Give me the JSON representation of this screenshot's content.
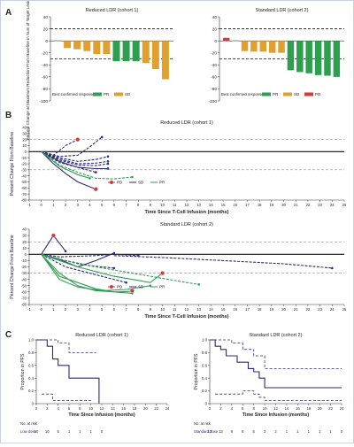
{
  "panels": [
    {
      "label": "A"
    },
    {
      "label": "B"
    },
    {
      "label": "C"
    }
  ],
  "colors": {
    "pr": "#2e9e4f",
    "sd": "#e0a030",
    "pd": "#d33a3a",
    "bc": "#999999",
    "line": "#2b2b7a",
    "green_line": "#2e9e4f",
    "axis": "#333333"
  },
  "chart_data": [
    {
      "type": "bar",
      "panel": "A",
      "title": "Reduced LDR (cohort 1)",
      "ylabel": "Percent Change at Maximum Reduction From Baseline in Sum of Target Lesion Diameters",
      "ylim": [
        -100,
        40
      ],
      "yticks": [
        40,
        20,
        0,
        -20,
        -40,
        -60,
        -80,
        -100
      ],
      "reference_lines": [
        20,
        -30
      ],
      "values": [
        1,
        -12,
        -14,
        -17,
        -22,
        -22,
        -34,
        -34,
        -34,
        -37,
        -47,
        -64
      ],
      "response": [
        "BC",
        "SD",
        "SD",
        "SD",
        "SD",
        "SD",
        "PR",
        "PR",
        "PR",
        "SD",
        "SD",
        "SD"
      ],
      "legend": {
        "title": "Best confirmed response",
        "entries": [
          "PR",
          "SD"
        ]
      }
    },
    {
      "type": "bar",
      "panel": "A",
      "title": "Standard LDR (cohort 2)",
      "ylabel": "Percent Change at Maximum Reduction From Baseline in Sum of Target Lesion Diameters",
      "ylim": [
        -100,
        40
      ],
      "yticks": [
        40,
        20,
        0,
        -20,
        -40,
        -60,
        -80,
        -100
      ],
      "reference_lines": [
        20,
        -30
      ],
      "values": [
        5,
        1,
        -17,
        -18,
        -18,
        -20,
        -20,
        -49,
        -52,
        -54,
        -57,
        -58,
        -60
      ],
      "response": [
        "PD",
        "BC",
        "SD",
        "SD",
        "SD",
        "SD",
        "SD",
        "PR",
        "PR",
        "PR",
        "PR",
        "PR",
        "PR"
      ],
      "legend": {
        "title": "Best confirmed response",
        "entries": [
          "PR",
          "SD",
          "PD"
        ]
      }
    },
    {
      "type": "line",
      "panel": "B",
      "title": "Reduced LDR (cohort 1)",
      "xlabel": "Time Since T-Cell Infusion (months)",
      "ylabel": "Percent Change From Baseline",
      "xlim": [
        -1,
        25
      ],
      "ylim": [
        -80,
        40
      ],
      "xticks": [
        -1,
        0,
        1,
        2,
        3,
        4,
        5,
        6,
        7,
        8,
        9,
        10,
        11,
        12,
        13,
        14,
        15,
        16,
        17,
        18,
        19,
        20,
        21,
        22,
        23,
        24,
        25
      ],
      "yticks": [
        40,
        30,
        20,
        10,
        0,
        -10,
        -20,
        -30,
        -40,
        -50,
        -60,
        -70,
        -80
      ],
      "reference_lines": [
        20,
        -30
      ],
      "legend": [
        "PD",
        "SD",
        "PR"
      ],
      "series": [
        {
          "response": "SD",
          "dashed": true,
          "x": [
            0,
            1,
            2,
            3
          ],
          "y": [
            0,
            -6,
            10,
            20
          ]
        },
        {
          "response": "PD",
          "dashed": true,
          "x": [
            0,
            1.5,
            3,
            4,
            5
          ],
          "y": [
            0,
            -8,
            -6,
            8,
            24
          ]
        },
        {
          "response": "SD",
          "dashed": true,
          "x": [
            0,
            1.5,
            3,
            4.5,
            5.5
          ],
          "y": [
            0,
            -10,
            -16,
            -13,
            -8
          ]
        },
        {
          "response": "SD",
          "dashed": true,
          "x": [
            0,
            1.5,
            3,
            4.5,
            5.5
          ],
          "y": [
            0,
            -12,
            -20,
            -19,
            -16
          ]
        },
        {
          "response": "SD",
          "dashed": true,
          "x": [
            0,
            1.5,
            3,
            4.5,
            5.5
          ],
          "y": [
            0,
            -14,
            -22,
            -23,
            -20
          ]
        },
        {
          "response": "SD",
          "dashed": false,
          "x": [
            0,
            1.5,
            3,
            4.5,
            5.5
          ],
          "y": [
            0,
            -16,
            -26,
            -28,
            -28
          ]
        },
        {
          "response": "SD",
          "dashed": true,
          "x": [
            0,
            1.5,
            3,
            4.5
          ],
          "y": [
            0,
            -18,
            -26,
            -34
          ]
        },
        {
          "response": "SD",
          "dashed": false,
          "x": [
            0,
            1,
            2,
            3,
            4.5
          ],
          "y": [
            0,
            -20,
            -36,
            -50,
            -62
          ]
        },
        {
          "response": "PR",
          "dashed": true,
          "x": [
            0,
            1.5,
            3,
            4.5,
            6,
            7.5
          ],
          "y": [
            0,
            -22,
            -34,
            -44,
            -45,
            -42
          ]
        },
        {
          "response": "PR",
          "dashed": false,
          "x": [
            0,
            1.5,
            3,
            4
          ],
          "y": [
            0,
            -24,
            -38,
            -44
          ]
        }
      ],
      "markers": [
        {
          "response": "PD",
          "x": 3,
          "y": 20
        },
        {
          "response": "PD",
          "x": 4.5,
          "y": -62
        }
      ]
    },
    {
      "type": "line",
      "panel": "B",
      "title": "Standard LDR (cohort 2)",
      "xlabel": "Time Since T-Cell Infusion (months)",
      "ylabel": "Percent Change From Baseline",
      "xlim": [
        -1,
        25
      ],
      "ylim": [
        -80,
        40
      ],
      "xticks": [
        -1,
        0,
        1,
        2,
        3,
        4,
        5,
        6,
        7,
        8,
        9,
        10,
        11,
        12,
        13,
        14,
        15,
        16,
        17,
        18,
        19,
        20,
        21,
        22,
        23,
        24,
        25
      ],
      "yticks": [
        40,
        30,
        20,
        10,
        0,
        -10,
        -20,
        -30,
        -40,
        -50,
        -60,
        -70,
        -80
      ],
      "reference_lines": [
        20,
        -30
      ],
      "legend": [
        "PD",
        "SD",
        "PR"
      ],
      "series": [
        {
          "response": "PD",
          "dashed": false,
          "x": [
            0,
            1,
            2
          ],
          "y": [
            0,
            30,
            5
          ]
        },
        {
          "response": "SD",
          "dashed": false,
          "x": [
            0,
            1.5,
            3,
            4.5,
            6
          ],
          "y": [
            0,
            -8,
            -20,
            -10,
            2
          ]
        },
        {
          "response": "SD",
          "dashed": true,
          "x": [
            0,
            1.5,
            3,
            4.5,
            6,
            8
          ],
          "y": [
            0,
            -4,
            -3,
            -2,
            0,
            -2
          ]
        },
        {
          "response": "SD",
          "dashed": true,
          "x": [
            6,
            10,
            15,
            20,
            24
          ],
          "y": [
            -2,
            -5,
            -10,
            -15,
            -22
          ]
        },
        {
          "response": "SD",
          "dashed": true,
          "x": [
            0,
            2,
            4,
            6
          ],
          "y": [
            0,
            -10,
            -18,
            -22
          ]
        },
        {
          "response": "SD",
          "dashed": true,
          "x": [
            0,
            2,
            4,
            6,
            7
          ],
          "y": [
            0,
            -20,
            -30,
            -40,
            -45
          ]
        },
        {
          "response": "PR",
          "dashed": false,
          "x": [
            0,
            1.5,
            3,
            4.5,
            6,
            7.5
          ],
          "y": [
            0,
            -35,
            -45,
            -55,
            -60,
            -62
          ]
        },
        {
          "response": "PR",
          "dashed": false,
          "x": [
            0,
            1.5,
            3,
            4.5,
            6,
            7.5
          ],
          "y": [
            0,
            -30,
            -50,
            -58,
            -60,
            -59
          ]
        },
        {
          "response": "PR",
          "dashed": false,
          "x": [
            0,
            1.5,
            3,
            5,
            7,
            9
          ],
          "y": [
            0,
            -40,
            -52,
            -58,
            -56,
            -50
          ]
        },
        {
          "response": "PR",
          "dashed": false,
          "x": [
            0,
            3,
            6,
            9,
            10
          ],
          "y": [
            0,
            -20,
            -35,
            -45,
            -30
          ]
        },
        {
          "response": "PR",
          "dashed": true,
          "x": [
            0,
            3,
            6,
            9,
            12,
            13
          ],
          "y": [
            0,
            -15,
            -25,
            -35,
            -45,
            -48
          ]
        }
      ],
      "markers": [
        {
          "response": "PD",
          "x": 1,
          "y": 30
        },
        {
          "response": "PD",
          "x": 10,
          "y": -30
        },
        {
          "response": "PD",
          "x": 7.5,
          "y": -58
        }
      ]
    },
    {
      "type": "line",
      "panel": "C",
      "title": "Reduced LDR (cohort 1)",
      "xlabel": "Time Since Infusion (months)",
      "ylabel": "Proportion in PFS",
      "xlim": [
        0,
        24
      ],
      "ylim": [
        0,
        1.0
      ],
      "xticks": [
        0,
        2,
        4,
        6,
        8,
        10,
        12,
        14,
        16,
        18,
        20,
        22,
        24
      ],
      "yticks": [
        "0",
        "0.2",
        "0.4",
        "0.6",
        "0.8",
        "1.0"
      ],
      "km": {
        "x": [
          0,
          2,
          3,
          4,
          6,
          11,
          11.5
        ],
        "y": [
          1.0,
          0.9,
          0.7,
          0.6,
          0.4,
          0.4,
          0.0
        ]
      },
      "ci_upper": {
        "x": [
          0,
          3,
          4,
          6,
          11
        ],
        "y": [
          1.0,
          1.0,
          0.95,
          0.8,
          0.8
        ]
      },
      "ci_lower": {
        "x": [
          1,
          2,
          3,
          4,
          6,
          10
        ],
        "y": [
          0.15,
          0.15,
          0.05,
          0.05,
          0.05,
          0.05
        ]
      },
      "risk_table": {
        "label": "No. at risk",
        "row_label": "Low dose",
        "counts": [
          "10",
          "10",
          "5",
          "1",
          "1",
          "1",
          "0"
        ]
      }
    },
    {
      "type": "line",
      "panel": "C",
      "title": "Standard LDR (cohort 2)",
      "xlabel": "Time Since Infusion (months)",
      "ylabel": "Proportion in PFS",
      "xlim": [
        0,
        24
      ],
      "ylim": [
        0,
        1.0
      ],
      "xticks": [
        0,
        2,
        4,
        6,
        8,
        10,
        12,
        14,
        16,
        18,
        20,
        22,
        24
      ],
      "yticks": [
        "0",
        "0.2",
        "0.4",
        "0.6",
        "0.8",
        "1.0"
      ],
      "km": {
        "x": [
          0,
          1,
          2,
          3,
          5,
          7,
          8,
          9,
          10,
          24
        ],
        "y": [
          1.0,
          0.9,
          0.85,
          0.75,
          0.65,
          0.55,
          0.5,
          0.4,
          0.25,
          0.25
        ]
      },
      "ci_upper": {
        "x": [
          0,
          2,
          4,
          6,
          8,
          10,
          24
        ],
        "y": [
          1.0,
          1.0,
          0.95,
          0.85,
          0.75,
          0.55,
          0.55
        ]
      },
      "ci_lower": {
        "x": [
          1,
          4,
          6,
          8,
          9,
          10,
          24
        ],
        "y": [
          0.15,
          0.15,
          0.2,
          0.15,
          0.1,
          0.05,
          0.05
        ]
      },
      "risk_table": {
        "label": "No. at risk",
        "row_label": "Standard dose",
        "counts": [
          "13",
          "13",
          "9",
          "8",
          "5",
          "3",
          "2",
          "1",
          "1",
          "1",
          "1",
          "1",
          "0"
        ]
      }
    }
  ]
}
